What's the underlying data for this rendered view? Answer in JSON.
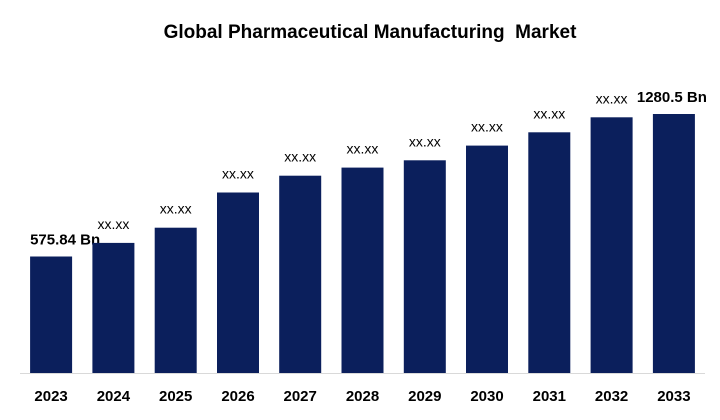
{
  "chart_data": {
    "type": "bar",
    "title": "Global Pharmaceutical Manufacturing  Market",
    "xlabel": "",
    "ylabel": "",
    "categories": [
      "2023",
      "2024",
      "2025",
      "2026",
      "2027",
      "2028",
      "2029",
      "2030",
      "2031",
      "2032",
      "2033"
    ],
    "values": [
      575.84,
      643.1,
      718.2,
      892.3,
      975.6,
      1015.4,
      1051.5,
      1124.5,
      1189.9,
      1264.3,
      1280.5
    ],
    "data_labels": [
      "575.84 Bn",
      "xx.xx",
      "xx.xx",
      "xx.xx",
      "xx.xx",
      "xx.xx",
      "xx.xx",
      "xx.xx",
      "xx.xx",
      "xx.xx",
      "1280.5 Bn"
    ],
    "ylim": [
      0,
      1280.5
    ],
    "grid": false,
    "legend": "none",
    "bar_color": "#0b1f5c",
    "axis_color": "#d9d9d9"
  }
}
